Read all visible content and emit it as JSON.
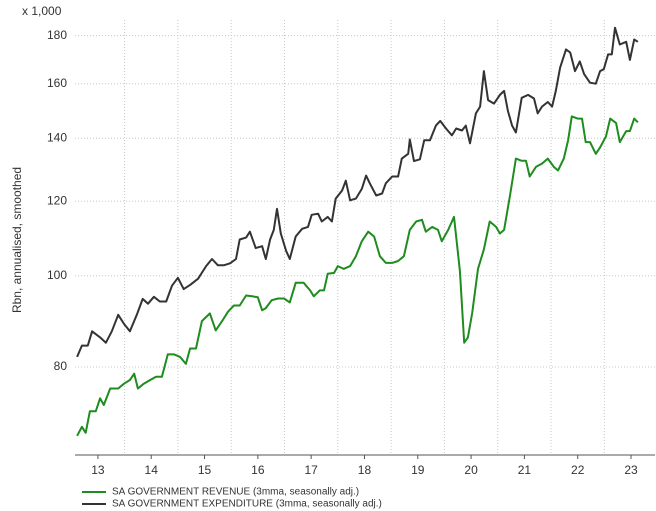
{
  "chart_data": {
    "type": "line",
    "y_multiplier": "x 1,000",
    "y_label": "Rbn, annualised, smoothed",
    "log_y": true,
    "grid": true,
    "legend": "bottom",
    "xlim": [
      2013.07,
      2023.95
    ],
    "xticks": [
      {
        "value": 2013.5,
        "label": "13"
      },
      {
        "value": 2014.5,
        "label": "14"
      },
      {
        "value": 2015.5,
        "label": "15"
      },
      {
        "value": 2016.5,
        "label": "16"
      },
      {
        "value": 2017.5,
        "label": "17"
      },
      {
        "value": 2018.5,
        "label": "18"
      },
      {
        "value": 2019.5,
        "label": "19"
      },
      {
        "value": 2020.5,
        "label": "20"
      },
      {
        "value": 2021.5,
        "label": "21"
      },
      {
        "value": 2022.5,
        "label": "22"
      },
      {
        "value": 2023.5,
        "label": "23"
      }
    ],
    "xgrid": [
      2014,
      2015,
      2016,
      2017,
      2018,
      2019,
      2020,
      2021,
      2022,
      2023
    ],
    "ylim": [
      64.5,
      187
    ],
    "yticks": [
      80,
      100,
      120,
      140,
      160,
      180
    ],
    "series": [
      {
        "name": "SA GOVERNMENT REVENUE (3mma, seasonally adj.)",
        "color": "#1e8c1e",
        "x": [
          2013.11,
          2013.2,
          2013.27,
          2013.35,
          2013.46,
          2013.54,
          2013.61,
          2013.73,
          2013.88,
          2013.99,
          2014.1,
          2014.18,
          2014.25,
          2014.36,
          2014.48,
          2014.59,
          2014.7,
          2014.81,
          2014.93,
          2015.04,
          2015.15,
          2015.23,
          2015.34,
          2015.45,
          2015.6,
          2015.71,
          2015.83,
          2015.94,
          2016.05,
          2016.16,
          2016.28,
          2016.39,
          2016.5,
          2016.58,
          2016.65,
          2016.76,
          2016.88,
          2016.99,
          2017.1,
          2017.21,
          2017.36,
          2017.48,
          2017.55,
          2017.66,
          2017.74,
          2017.81,
          2017.93,
          2018.0,
          2018.11,
          2018.23,
          2018.34,
          2018.45,
          2018.57,
          2018.68,
          2018.79,
          2018.9,
          2019.02,
          2019.13,
          2019.24,
          2019.35,
          2019.47,
          2019.58,
          2019.65,
          2019.77,
          2019.88,
          2019.95,
          2020.07,
          2020.18,
          2020.29,
          2020.37,
          2020.44,
          2020.52,
          2020.63,
          2020.74,
          2020.85,
          2020.97,
          2021.04,
          2021.12,
          2021.23,
          2021.34,
          2021.45,
          2021.53,
          2021.6,
          2021.72,
          2021.83,
          2021.94,
          2022.05,
          2022.13,
          2022.24,
          2022.32,
          2022.39,
          2022.5,
          2022.58,
          2022.65,
          2022.73,
          2022.84,
          2022.92,
          2023.03,
          2023.11,
          2023.22,
          2023.29,
          2023.41,
          2023.48,
          2023.56,
          2023.63
        ],
        "values": [
          67.6,
          69.1,
          68.1,
          71.8,
          71.8,
          74.1,
          72.9,
          75.9,
          75.9,
          76.8,
          77.5,
          78.7,
          75.9,
          76.8,
          77.5,
          78.1,
          78.1,
          82.5,
          82.5,
          82,
          80.6,
          83.7,
          83.7,
          89.5,
          91.2,
          87.5,
          89.5,
          91.6,
          93,
          93,
          95.3,
          95.1,
          94.9,
          91.9,
          92.4,
          94.2,
          94.6,
          94.6,
          93.7,
          98.3,
          98.3,
          96.5,
          95.1,
          96.5,
          96.5,
          100.5,
          100.7,
          102.4,
          101.7,
          102.4,
          104.9,
          108.8,
          111.4,
          110.1,
          104.9,
          103.2,
          103.2,
          103.7,
          104.9,
          111.9,
          114.2,
          114.7,
          111.4,
          112.7,
          111.9,
          108.8,
          111.9,
          115.5,
          101.2,
          84.9,
          86,
          91.3,
          101.7,
          106.7,
          114.2,
          112.7,
          110.9,
          111.9,
          121.7,
          133.2,
          132.5,
          132.5,
          127.5,
          130.6,
          131.6,
          133.2,
          130.6,
          129.4,
          133.2,
          139.3,
          147.7,
          146.9,
          146.9,
          138.7,
          138.7,
          134.8,
          136.9,
          140.7,
          146.9,
          145.3,
          138.7,
          142.5,
          142.5,
          146.9,
          145.6
        ]
      },
      {
        "name": "SA GOVERNMENT EXPENDITURE (3mma, seasonally adj.)",
        "color": "#333333",
        "x": [
          2013.11,
          2013.2,
          2013.31,
          2013.39,
          2013.54,
          2013.65,
          2013.76,
          2013.88,
          2013.99,
          2014.1,
          2014.23,
          2014.34,
          2014.44,
          2014.55,
          2014.66,
          2014.78,
          2014.89,
          2015.0,
          2015.11,
          2015.23,
          2015.38,
          2015.53,
          2015.64,
          2015.75,
          2015.86,
          2015.98,
          2016.09,
          2016.16,
          2016.28,
          2016.35,
          2016.46,
          2016.58,
          2016.65,
          2016.73,
          2016.8,
          2016.86,
          2016.93,
          2017.03,
          2017.1,
          2017.21,
          2017.33,
          2017.44,
          2017.51,
          2017.63,
          2017.7,
          2017.81,
          2017.89,
          2017.96,
          2018.08,
          2018.15,
          2018.23,
          2018.34,
          2018.45,
          2018.53,
          2018.6,
          2018.72,
          2018.83,
          2018.9,
          2019.02,
          2019.13,
          2019.2,
          2019.32,
          2019.35,
          2019.43,
          2019.54,
          2019.62,
          2019.73,
          2019.84,
          2019.92,
          2020.03,
          2020.14,
          2020.22,
          2020.33,
          2020.4,
          2020.48,
          2020.59,
          2020.67,
          2020.74,
          2020.82,
          2020.93,
          2021.04,
          2021.12,
          2021.19,
          2021.27,
          2021.34,
          2021.45,
          2021.57,
          2021.68,
          2021.75,
          2021.83,
          2021.94,
          2022.02,
          2022.09,
          2022.17,
          2022.28,
          2022.36,
          2022.45,
          2022.54,
          2022.62,
          2022.73,
          2022.84,
          2022.92,
          2022.99,
          2023.07,
          2023.14,
          2023.2,
          2023.29,
          2023.41,
          2023.48,
          2023.56,
          2023.63
        ],
        "values": [
          82,
          84.3,
          84.3,
          87.3,
          86,
          84.9,
          87.3,
          90.9,
          88.9,
          87.3,
          90.9,
          94.5,
          93.4,
          95,
          93.9,
          93.9,
          97.6,
          99.5,
          96.8,
          97.8,
          99.3,
          102.4,
          104.2,
          102.6,
          102.6,
          103.1,
          104.2,
          109.3,
          109.8,
          111.4,
          107,
          107.5,
          104.2,
          109.3,
          111.9,
          117.8,
          110.9,
          106.3,
          104.2,
          110.1,
          112.2,
          112.7,
          116.1,
          116.4,
          114.2,
          115.5,
          114.2,
          120.8,
          123.2,
          126.2,
          120.3,
          120.8,
          123.7,
          127.8,
          125.4,
          121.7,
          122.3,
          125.4,
          127.5,
          127.5,
          133.2,
          134.8,
          139.6,
          132.4,
          133,
          139.3,
          139.3,
          144.4,
          146.1,
          143.4,
          141,
          143.4,
          142.7,
          144.4,
          138.3,
          148.8,
          151.3,
          165,
          153.7,
          152.4,
          155.7,
          157.2,
          149.7,
          144.4,
          142,
          154.6,
          155.7,
          154.3,
          148.8,
          151.3,
          153,
          151.3,
          157.2,
          166.4,
          174,
          172.7,
          165,
          169,
          163.8,
          160.4,
          160,
          165,
          165.8,
          171.9,
          171.9,
          183.5,
          176.1,
          177.3,
          169.6,
          178.3,
          177.3
        ]
      }
    ]
  }
}
